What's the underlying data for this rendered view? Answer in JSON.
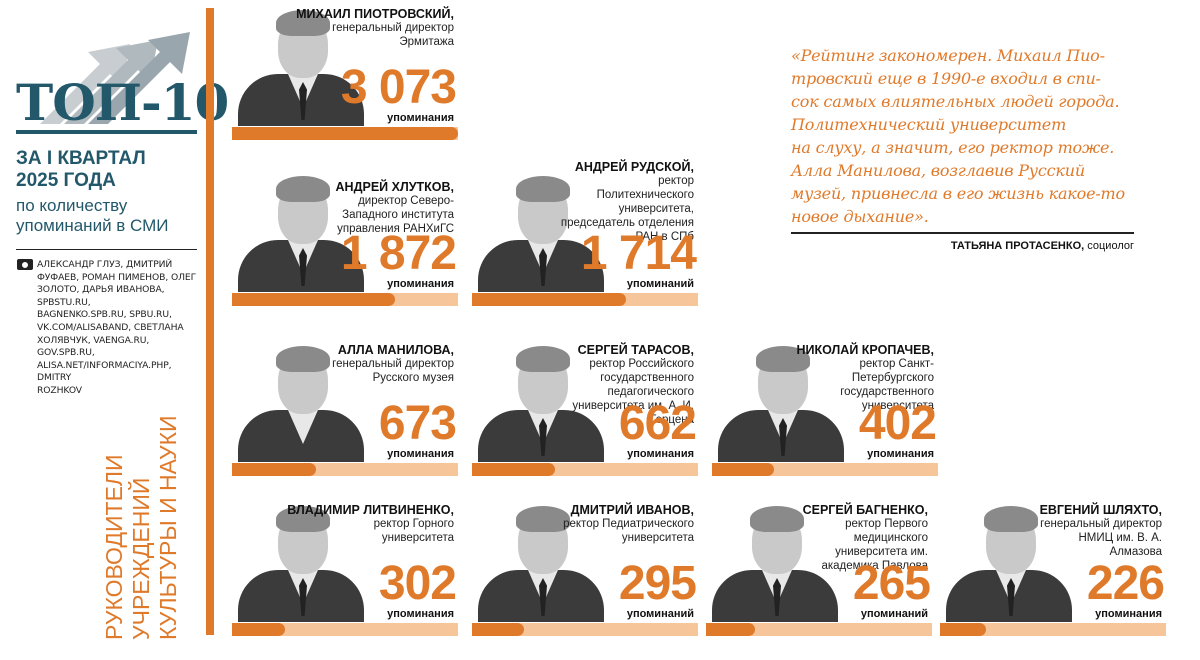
{
  "header": {
    "title": "ТОП-10",
    "period_lines": [
      "ЗА I КВАРТАЛ",
      "2025 ГОДА"
    ],
    "criterion_lines": [
      "по количеству",
      "упоминаний в СМИ"
    ],
    "credits_lines": [
      "АЛЕКСАНДР ГЛУЗ, ДМИТРИЙ",
      "ФУФАЕВ, РОМАН ПИМЕНОВ, ОЛЕГ",
      "ЗОЛОТО, ДАРЬЯ ИВАНОВА, SPBSTU.RU,",
      "BAGNENKO.SPB.RU, SPBU.RU,",
      "VK.COM/ALISABAND, СВЕТЛАНА",
      "ХОЛЯВЧУК, VAENGA.RU, GOV.SPB.RU,",
      "ALISA.NET/INFORMACIYA.PHP, DMITRY",
      "ROZHKOV"
    ],
    "vertical_title_lines": [
      "РУКОВОДИТЕЛИ",
      "УЧРЕЖДЕНИЙ",
      "КУЛЬТУРЫ И НАУКИ"
    ]
  },
  "colors": {
    "accent": "#e07a2b",
    "accent_light": "#f6c69a",
    "title": "#23586b",
    "text": "#1a1a1a"
  },
  "people": [
    {
      "name": "МИХАИЛ ПИОТРОВСКИЙ,",
      "role": "генеральный директор Эрмитажа",
      "count_label": "3 073",
      "unit": "упоминания",
      "mentions": 3073
    },
    {
      "name": "АНДРЕЙ ХЛУТКОВ,",
      "role": "директор Северо-Западного института управления РАНХиГС",
      "count_label": "1 872",
      "unit": "упоминания",
      "mentions": 1872
    },
    {
      "name": "АНДРЕЙ РУДСКОЙ,",
      "role": "ректор Политехнического университета, председатель отделения РАН в СПб",
      "count_label": "1 714",
      "unit": "упоминаний",
      "mentions": 1714
    },
    {
      "name": "АЛЛА МАНИЛОВА,",
      "role": "генеральный директор Русского музея",
      "count_label": "673",
      "unit": "упоминания",
      "mentions": 673
    },
    {
      "name": "СЕРГЕЙ ТАРАСОВ,",
      "role": "ректор Российского государственного педагогического университета им. А. И. Герцена",
      "count_label": "662",
      "unit": "упоминания",
      "mentions": 662
    },
    {
      "name": "НИКОЛАЙ КРОПАЧЕВ,",
      "role": "ректор Санкт-Петербургского государственного университета",
      "count_label": "402",
      "unit": "упоминания",
      "mentions": 402
    },
    {
      "name": "ВЛАДИМИР ЛИТВИНЕНКО,",
      "role": "ректор Горного университета",
      "count_label": "302",
      "unit": "упоминания",
      "mentions": 302
    },
    {
      "name": "ДМИТРИЙ ИВАНОВ,",
      "role": "ректор Педиатрического университета",
      "count_label": "295",
      "unit": "упоминаний",
      "mentions": 295
    },
    {
      "name": "СЕРГЕЙ БАГНЕНКО,",
      "role": "ректор Первого медицинского университета им. академика Павлова",
      "count_label": "265",
      "unit": "упоминаний",
      "mentions": 265
    },
    {
      "name": "ЕВГЕНИЙ ШЛЯХТО,",
      "role": "генеральный директор НМИЦ им. В. А. Алмазова",
      "count_label": "226",
      "unit": "упоминания",
      "mentions": 226
    }
  ],
  "quote": {
    "lines": [
      "«Рейтинг закономерен. Михаил Пио-",
      "тровский еще в 1990-е входил в спи-",
      "сок самых влиятельных людей города.",
      "Политехнический университет",
      "на слуху, а значит, его ректор тоже.",
      "Алла Манилова, возглавив Русский",
      "музей, привнесла в его жизнь какое-то",
      "новое дыхание»."
    ],
    "author_name": "ТАТЬЯНА ПРОТАСЕНКО,",
    "author_role": " социолог"
  }
}
